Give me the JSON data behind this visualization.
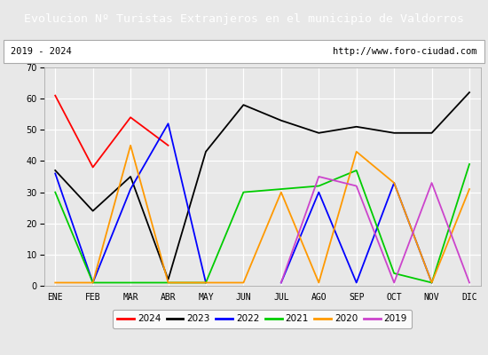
{
  "title": "Evolucion Nº Turistas Extranjeros en el municipio de Valdorros",
  "subtitle_left": "2019 - 2024",
  "subtitle_right": "http://www.foro-ciudad.com",
  "title_bg": "#4a7abf",
  "title_color": "#ffffff",
  "months": [
    "ENE",
    "FEB",
    "MAR",
    "ABR",
    "MAY",
    "JUN",
    "JUL",
    "AGO",
    "SEP",
    "OCT",
    "NOV",
    "DIC"
  ],
  "series": {
    "2024": {
      "color": "#ff0000",
      "data": [
        61,
        38,
        54,
        45,
        null,
        null,
        null,
        null,
        null,
        null,
        null,
        null
      ]
    },
    "2023": {
      "color": "#000000",
      "data": [
        37,
        24,
        35,
        2,
        43,
        58,
        53,
        49,
        51,
        49,
        49,
        62
      ]
    },
    "2022": {
      "color": "#0000ff",
      "data": [
        36,
        1,
        31,
        52,
        1,
        null,
        1,
        30,
        1,
        33,
        1,
        null
      ]
    },
    "2021": {
      "color": "#00cc00",
      "data": [
        30,
        1,
        1,
        1,
        1,
        30,
        31,
        32,
        37,
        4,
        1,
        39
      ]
    },
    "2020": {
      "color": "#ff9900",
      "data": [
        1,
        1,
        45,
        1,
        1,
        1,
        30,
        1,
        43,
        33,
        1,
        31
      ]
    },
    "2019": {
      "color": "#cc44cc",
      "data": [
        null,
        null,
        null,
        null,
        null,
        null,
        1,
        35,
        32,
        1,
        33,
        1
      ]
    }
  },
  "ylim": [
    0,
    70
  ],
  "yticks": [
    0,
    10,
    20,
    30,
    40,
    50,
    60,
    70
  ],
  "legend_order": [
    "2024",
    "2023",
    "2022",
    "2021",
    "2020",
    "2019"
  ],
  "outer_bg": "#e8e8e8",
  "plot_bg": "#e8e8e8",
  "grid_color": "#ffffff"
}
